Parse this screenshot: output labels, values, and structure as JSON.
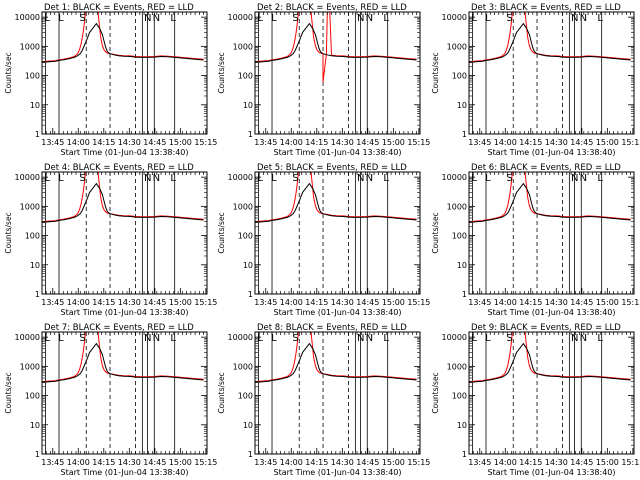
{
  "figure": {
    "background": "#ffffff",
    "axis_color": "#000000",
    "events_color": "#000000",
    "lld_color": "#ff0000"
  },
  "chart_data": [
    {
      "type": "line",
      "title": "Det 1: BLACK = Events, RED = LLD",
      "variant": 1
    },
    {
      "type": "line",
      "title": "Det 2: BLACK = Events, RED = LLD",
      "variant": 2
    },
    {
      "type": "line",
      "title": "Det 3: BLACK = Events, RED = LLD",
      "variant": 3
    },
    {
      "type": "line",
      "title": "Det 4: BLACK = Events, RED = LLD",
      "variant": 4
    },
    {
      "type": "line",
      "title": "Det 5: BLACK = Events, RED = LLD",
      "variant": 5
    },
    {
      "type": "line",
      "title": "Det 6: BLACK = Events, RED = LLD",
      "variant": 6
    },
    {
      "type": "line",
      "title": "Det 7: BLACK = Events, RED = LLD",
      "variant": 7
    },
    {
      "type": "line",
      "title": "Det 8: BLACK = Events, RED = LLD",
      "variant": 8
    },
    {
      "type": "line",
      "title": "Det 9: BLACK = Events, RED = LLD",
      "variant": 9
    }
  ],
  "shared_axes": {
    "xlabel": "Start Time (01-Jun-04 13:38:40)",
    "ylabel": "Counts/sec",
    "xlim_min": [
      0,
      97
    ],
    "x_tick_labels": [
      "13:45",
      "14:00",
      "14:15",
      "14:30",
      "14:45",
      "15:00",
      "15:15"
    ],
    "x_tick_values": [
      6.33,
      21.33,
      36.33,
      51.33,
      66.33,
      81.33,
      96.33
    ],
    "x_minor_step_min": 2.5,
    "y_scale": "log",
    "ylim": [
      1,
      15000
    ],
    "y_tick_labels": [
      "1",
      "10",
      "100",
      "1000",
      "10000"
    ],
    "y_tick_values": [
      1,
      10,
      100,
      1000,
      10000
    ]
  },
  "markers": {
    "solid_lines_min": [
      2,
      10,
      59,
      62,
      66,
      78
    ],
    "dashed_lines_min": [
      26,
      40,
      55
    ],
    "letters": [
      {
        "text": "L",
        "x_min": 1.5
      },
      {
        "text": "L",
        "x_min": 9.5
      },
      {
        "text": "S",
        "x_min": 22.0
      },
      {
        "text": "N",
        "x_min": 60.0
      },
      {
        "text": "N",
        "x_min": 65.0
      },
      {
        "text": "L",
        "x_min": 75.5
      }
    ]
  },
  "series": {
    "events": {
      "name": "Events",
      "x": [
        0,
        2,
        5,
        8,
        10,
        13,
        16,
        19,
        21,
        22.5,
        23.5,
        24.5,
        26,
        28,
        32,
        34,
        35.5,
        36.5,
        37.5,
        38.5,
        40,
        42,
        45,
        48,
        52,
        55,
        58,
        62,
        66,
        70,
        74,
        78,
        82,
        86,
        90,
        95
      ],
      "y": [
        280,
        290,
        300,
        310,
        330,
        350,
        380,
        420,
        480,
        560,
        700,
        950,
        1500,
        3000,
        6000,
        4000,
        2500,
        1500,
        900,
        650,
        560,
        520,
        480,
        460,
        450,
        430,
        420,
        420,
        430,
        450,
        440,
        420,
        400,
        380,
        360,
        340
      ]
    },
    "lld": {
      "name": "LLD",
      "x": [
        0,
        2,
        5,
        8,
        10,
        13,
        16,
        19,
        21,
        22,
        23,
        24,
        25,
        25.5,
        33,
        33.5,
        34.5,
        35.5,
        36.5,
        38,
        40,
        42,
        45,
        48,
        52,
        55,
        58,
        62,
        66,
        70,
        74,
        78,
        82,
        86,
        90,
        95
      ],
      "y": [
        300,
        305,
        315,
        325,
        345,
        365,
        400,
        450,
        560,
        750,
        1200,
        2500,
        7000,
        15000,
        15000,
        7000,
        2000,
        1050,
        750,
        600,
        560,
        540,
        500,
        480,
        470,
        450,
        440,
        440,
        450,
        470,
        460,
        440,
        420,
        400,
        380,
        360
      ]
    },
    "det2_lld_spikes": [
      {
        "x_min": 40.0,
        "y": 60
      },
      {
        "x_min": 42.5,
        "y": 15000
      },
      {
        "x_min": 44.0,
        "y": 15000
      }
    ]
  }
}
